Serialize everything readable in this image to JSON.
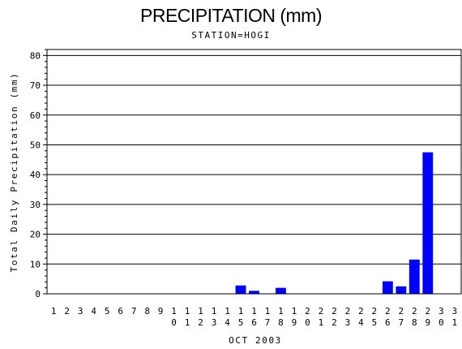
{
  "chart_data": {
    "type": "bar",
    "title": "PRECIPITATION (mm)",
    "subtitle": "STATION=HOGI",
    "ylabel": "Total Daily Precipitation (mm)",
    "xlabel": "OCT 2003",
    "ylim": [
      0,
      82
    ],
    "yticks": [
      0,
      10,
      20,
      30,
      40,
      50,
      60,
      70,
      80
    ],
    "grid": true,
    "bar_color": "#0000ff",
    "categories": [
      "1",
      "2",
      "3",
      "4",
      "5",
      "6",
      "7",
      "8",
      "9",
      "10",
      "11",
      "12",
      "13",
      "14",
      "15",
      "16",
      "17",
      "18",
      "19",
      "20",
      "21",
      "22",
      "23",
      "24",
      "25",
      "26",
      "27",
      "28",
      "29",
      "30",
      "31"
    ],
    "values": [
      0,
      0,
      0,
      0,
      0,
      0,
      0,
      0,
      0,
      0,
      0,
      0,
      0,
      0,
      2.8,
      1.0,
      0,
      2.0,
      0,
      0,
      0,
      0,
      0,
      0,
      0,
      4.2,
      2.5,
      11.5,
      47.5,
      0,
      0
    ]
  }
}
